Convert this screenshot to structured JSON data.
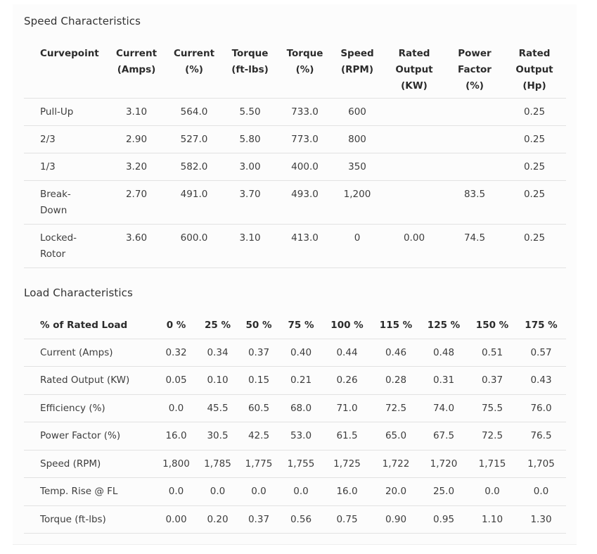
{
  "speed": {
    "title": "Speed Characteristics",
    "headers": [
      [
        "Curvepoint"
      ],
      [
        "Current",
        "(Amps)"
      ],
      [
        "Current",
        "(%)"
      ],
      [
        "Torque",
        "(ft-lbs)"
      ],
      [
        "Torque",
        "(%)"
      ],
      [
        "Speed",
        "(RPM)"
      ],
      [
        "Rated",
        "Output",
        "(KW)"
      ],
      [
        "Power",
        "Factor",
        "(%)"
      ],
      [
        "Rated",
        "Output",
        "(Hp)"
      ]
    ],
    "rows": [
      {
        "label": [
          "Pull-Up"
        ],
        "values": [
          "3.10",
          "564.0",
          "5.50",
          "733.0",
          "600",
          "",
          "",
          "0.25"
        ]
      },
      {
        "label": [
          "2/3"
        ],
        "values": [
          "2.90",
          "527.0",
          "5.80",
          "773.0",
          "800",
          "",
          "",
          "0.25"
        ]
      },
      {
        "label": [
          "1/3"
        ],
        "values": [
          "3.20",
          "582.0",
          "3.00",
          "400.0",
          "350",
          "",
          "",
          "0.25"
        ]
      },
      {
        "label": [
          "Break-",
          "Down"
        ],
        "values": [
          "2.70",
          "491.0",
          "3.70",
          "493.0",
          "1,200",
          "",
          "83.5",
          "0.25"
        ]
      },
      {
        "label": [
          "Locked-",
          "Rotor"
        ],
        "values": [
          "3.60",
          "600.0",
          "3.10",
          "413.0",
          "0",
          "0.00",
          "74.5",
          "0.25"
        ]
      }
    ]
  },
  "load": {
    "title": "Load Characteristics",
    "headers": [
      "% of Rated Load",
      "0 %",
      "25 %",
      "50 %",
      "75 %",
      "100 %",
      "115 %",
      "125 %",
      "150 %",
      "175 %"
    ],
    "rows": [
      {
        "label": "Current (Amps)",
        "values": [
          "0.32",
          "0.34",
          "0.37",
          "0.40",
          "0.44",
          "0.46",
          "0.48",
          "0.51",
          "0.57"
        ]
      },
      {
        "label": "Rated Output (KW)",
        "values": [
          "0.05",
          "0.10",
          "0.15",
          "0.21",
          "0.26",
          "0.28",
          "0.31",
          "0.37",
          "0.43"
        ]
      },
      {
        "label": "Efficiency (%)",
        "values": [
          "0.0",
          "45.5",
          "60.5",
          "68.0",
          "71.0",
          "72.5",
          "74.0",
          "75.5",
          "76.0"
        ]
      },
      {
        "label": "Power Factor (%)",
        "values": [
          "16.0",
          "30.5",
          "42.5",
          "53.0",
          "61.5",
          "65.0",
          "67.5",
          "72.5",
          "76.5"
        ]
      },
      {
        "label": "Speed (RPM)",
        "values": [
          "1,800",
          "1,785",
          "1,775",
          "1,755",
          "1,725",
          "1,722",
          "1,720",
          "1,715",
          "1,705"
        ]
      },
      {
        "label": "Temp. Rise @ FL",
        "values": [
          "0.0",
          "0.0",
          "0.0",
          "0.0",
          "16.0",
          "20.0",
          "25.0",
          "0.0",
          "0.0"
        ]
      },
      {
        "label": "Torque (ft-lbs)",
        "values": [
          "0.00",
          "0.20",
          "0.37",
          "0.56",
          "0.75",
          "0.90",
          "0.95",
          "1.10",
          "1.30"
        ]
      }
    ]
  }
}
